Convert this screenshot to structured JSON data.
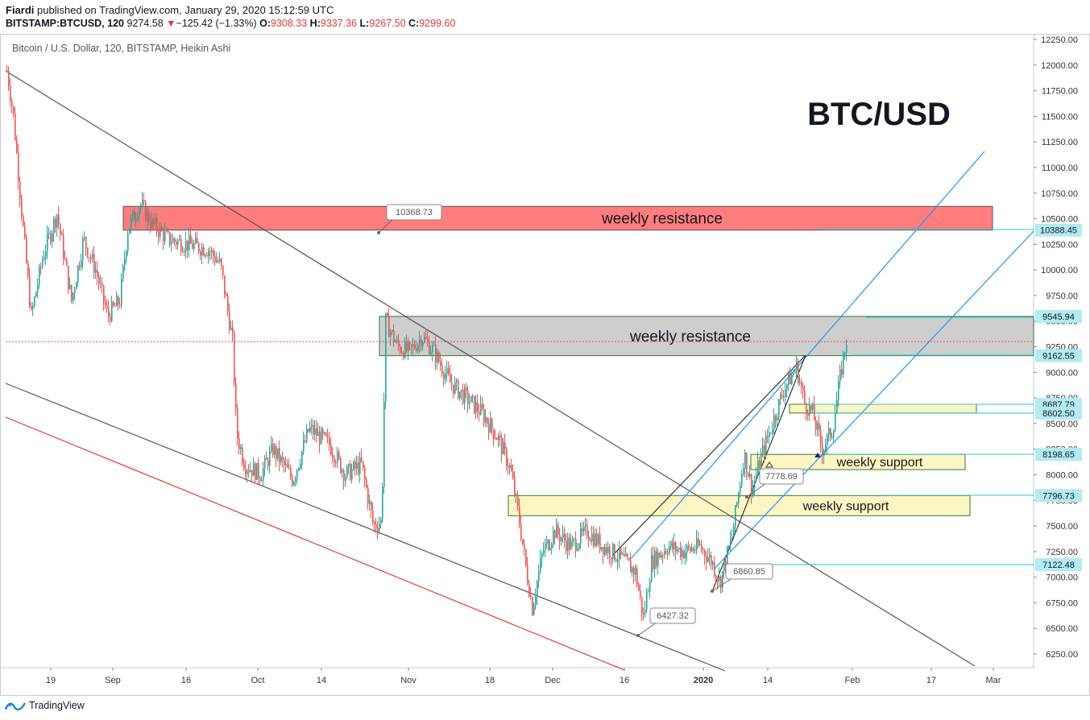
{
  "header": {
    "author": "Fiardi",
    "published": "published on TradingView.com, January 29, 2020 15:12:59 UTC",
    "symbol": "BITSTAMP:BTCUSD, 120",
    "last": "9274.58",
    "change_arrow": "▼",
    "change": "−125.42 (−1.33%)",
    "o_label": "O:",
    "o": "9308.33",
    "h_label": "H:",
    "h": "9337.36",
    "l_label": "L:",
    "l": "9267.50",
    "c_label": "C:",
    "c": "9299.60"
  },
  "chart_title": "Bitcoin / U.S. Dollar, 120, BITSTAMP, Heikin Ashi",
  "footer": {
    "brand": "TradingView",
    "icon": "tradingview-logo-icon"
  },
  "colors": {
    "up": "#26a69a",
    "down": "#ef5350",
    "resistance_red": "#ff5252",
    "resistance_grey": "#9e9e9e",
    "support_yellow": "#fff2b3",
    "trend_blue": "#2196f3",
    "axis_label_bg": "#b2ebf2"
  },
  "chart_data": {
    "type": "candlestick",
    "style": "Heikin Ashi",
    "title": "BTC/USD",
    "price_axis": {
      "ticks": [
        "12250.00",
        "12000.00",
        "11750.00",
        "11500.00",
        "11250.00",
        "11000.00",
        "10750.00",
        "10500.00",
        "10250.00",
        "10000.00",
        "9750.00",
        "9500.00",
        "9250.00",
        "9000.00",
        "8750.00",
        "8500.00",
        "8250.00",
        "8000.00",
        "7750.00",
        "7500.00",
        "7250.00",
        "7000.00",
        "6750.00",
        "6500.00",
        "6250.00"
      ],
      "range": [
        6100,
        12300
      ]
    },
    "time_axis": {
      "ticks": [
        "19",
        "Sep",
        "16",
        "Oct",
        "14",
        "Nov",
        "18",
        "Dec",
        "16",
        "2020",
        "14",
        "Feb",
        "17",
        "Mar"
      ],
      "bold_ticks": [
        "2020"
      ]
    },
    "highlighted_levels": [
      "10388.45",
      "9545.94",
      "9162.55",
      "8687.79",
      "8602.50",
      "8198.65",
      "7796.73",
      "7122.48"
    ],
    "zones": [
      {
        "label": "weekly resistance",
        "low": 10388.45,
        "high": 10620
      },
      {
        "label": "weekly resistance",
        "low": 9162.55,
        "high": 9545.94
      },
      {
        "label": "",
        "low": 8602.5,
        "high": 8687.79
      },
      {
        "label": "weekly support",
        "low": 8050,
        "high": 8198.65
      },
      {
        "label": "weekly support",
        "low": 7600,
        "high": 7796.73
      }
    ],
    "annotations": [
      "10368.73",
      "7778.69",
      "6860.85",
      "6427.32"
    ],
    "series_path": [
      {
        "t": 0,
        "v": 11950
      },
      {
        "t": 8,
        "v": 11500
      },
      {
        "t": 20,
        "v": 10400
      },
      {
        "t": 30,
        "v": 9550
      },
      {
        "t": 45,
        "v": 10150
      },
      {
        "t": 62,
        "v": 10550
      },
      {
        "t": 80,
        "v": 9700
      },
      {
        "t": 95,
        "v": 10300
      },
      {
        "t": 110,
        "v": 10000
      },
      {
        "t": 125,
        "v": 9550
      },
      {
        "t": 140,
        "v": 9700
      },
      {
        "t": 150,
        "v": 10400
      },
      {
        "t": 165,
        "v": 10650
      },
      {
        "t": 180,
        "v": 10450
      },
      {
        "t": 200,
        "v": 10300
      },
      {
        "t": 225,
        "v": 10250
      },
      {
        "t": 250,
        "v": 10200
      },
      {
        "t": 265,
        "v": 10050
      },
      {
        "t": 280,
        "v": 9300
      },
      {
        "t": 285,
        "v": 8400
      },
      {
        "t": 295,
        "v": 8100
      },
      {
        "t": 315,
        "v": 8000
      },
      {
        "t": 330,
        "v": 8250
      },
      {
        "t": 355,
        "v": 7950
      },
      {
        "t": 375,
        "v": 8450
      },
      {
        "t": 400,
        "v": 8300
      },
      {
        "t": 420,
        "v": 8000
      },
      {
        "t": 440,
        "v": 8100
      },
      {
        "t": 455,
        "v": 7500
      },
      {
        "t": 465,
        "v": 7550
      },
      {
        "t": 470,
        "v": 9500
      },
      {
        "t": 485,
        "v": 9250
      },
      {
        "t": 500,
        "v": 9200
      },
      {
        "t": 515,
        "v": 9350
      },
      {
        "t": 530,
        "v": 9200
      },
      {
        "t": 550,
        "v": 8900
      },
      {
        "t": 570,
        "v": 8750
      },
      {
        "t": 590,
        "v": 8600
      },
      {
        "t": 610,
        "v": 8350
      },
      {
        "t": 625,
        "v": 8050
      },
      {
        "t": 635,
        "v": 7600
      },
      {
        "t": 645,
        "v": 7050
      },
      {
        "t": 652,
        "v": 6700
      },
      {
        "t": 665,
        "v": 7250
      },
      {
        "t": 680,
        "v": 7450
      },
      {
        "t": 700,
        "v": 7300
      },
      {
        "t": 720,
        "v": 7450
      },
      {
        "t": 740,
        "v": 7300
      },
      {
        "t": 760,
        "v": 7200
      },
      {
        "t": 780,
        "v": 7050
      },
      {
        "t": 790,
        "v": 6600
      },
      {
        "t": 800,
        "v": 7150
      },
      {
        "t": 820,
        "v": 7300
      },
      {
        "t": 840,
        "v": 7250
      },
      {
        "t": 860,
        "v": 7300
      },
      {
        "t": 875,
        "v": 7150
      },
      {
        "t": 885,
        "v": 6950
      },
      {
        "t": 900,
        "v": 7400
      },
      {
        "t": 915,
        "v": 8200
      },
      {
        "t": 925,
        "v": 7850
      },
      {
        "t": 935,
        "v": 8150
      },
      {
        "t": 950,
        "v": 8500
      },
      {
        "t": 965,
        "v": 8850
      },
      {
        "t": 980,
        "v": 9050
      },
      {
        "t": 990,
        "v": 8700
      },
      {
        "t": 1000,
        "v": 8600
      },
      {
        "t": 1012,
        "v": 8250
      },
      {
        "t": 1025,
        "v": 8450
      },
      {
        "t": 1035,
        "v": 9000
      },
      {
        "t": 1042,
        "v": 9320
      }
    ]
  }
}
